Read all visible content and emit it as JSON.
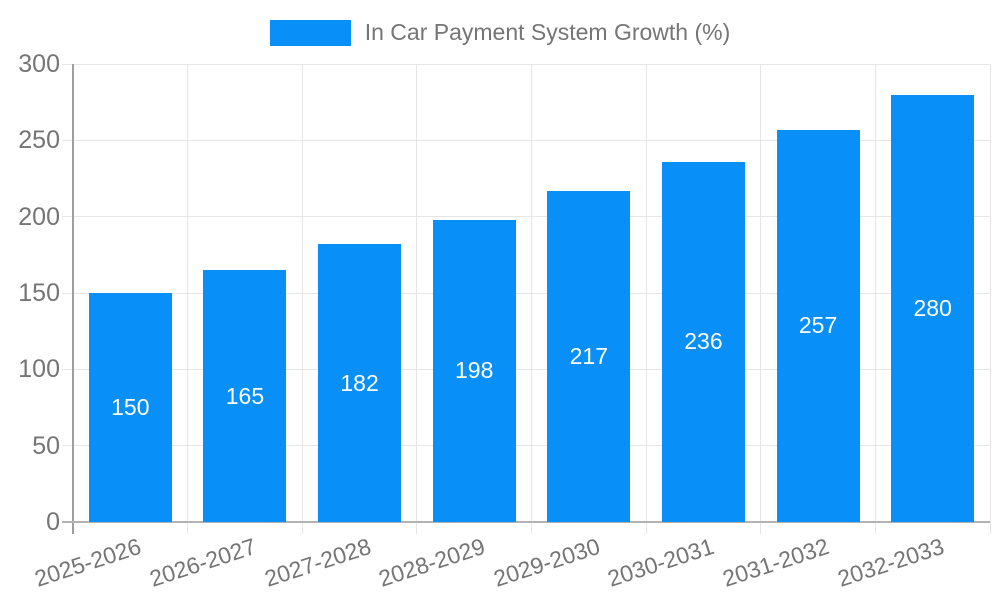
{
  "chart_data": {
    "type": "bar",
    "title": "",
    "legend_label": "In Car Payment System Growth (%)",
    "legend_position": "top",
    "categories": [
      "2025-2026",
      "2026-2027",
      "2027-2028",
      "2028-2029",
      "2029-2030",
      "2030-2031",
      "2031-2032",
      "2032-2033"
    ],
    "values": [
      150,
      165,
      182,
      198,
      217,
      236,
      257,
      280
    ],
    "xlabel": "",
    "ylabel": "",
    "ylim": [
      0,
      300
    ],
    "ytick_step": 50,
    "ytick_labels": [
      "0",
      "50",
      "100",
      "150",
      "200",
      "250",
      "300"
    ],
    "grid": true,
    "colors": {
      "bar": "#0890f8",
      "axis_label": "#757575",
      "gridline": "#e6e6e6",
      "axis_line": "#9e9e9e",
      "baseline": "#b3b3b3",
      "value_label": "#ffffff",
      "background": "#ffffff"
    }
  }
}
